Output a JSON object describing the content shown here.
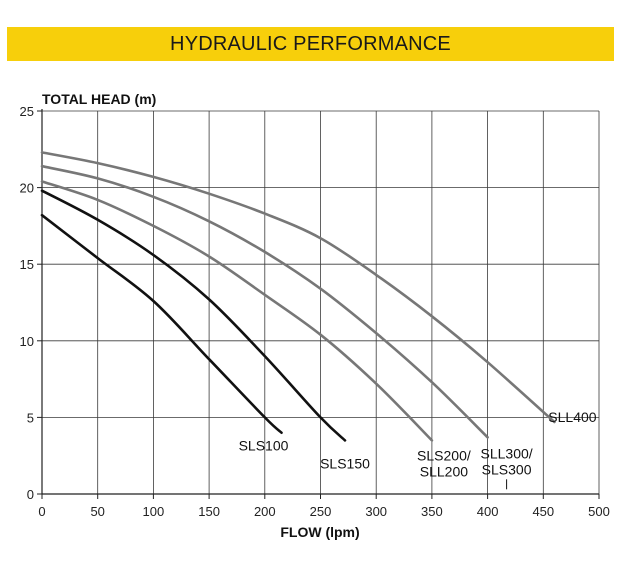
{
  "chart_data": {
    "type": "line",
    "title": "HYDRAULIC PERFORMANCE",
    "xlabel": "FLOW (lpm)",
    "ylabel": "TOTAL HEAD (m)",
    "xlim": [
      0,
      500
    ],
    "ylim": [
      0,
      25
    ],
    "xticks": [
      0,
      50,
      100,
      150,
      200,
      250,
      300,
      350,
      400,
      450,
      500
    ],
    "yticks": [
      0,
      5,
      10,
      15,
      20,
      25
    ],
    "grid": true,
    "series": [
      {
        "name": "SLS100",
        "label_lines": [
          "SLS100"
        ],
        "color": "#111111",
        "x": [
          0,
          50,
          100,
          150,
          200,
          215
        ],
        "y": [
          18.2,
          15.4,
          12.6,
          8.8,
          5.0,
          4.0
        ]
      },
      {
        "name": "SLS150",
        "label_lines": [
          "SLS150"
        ],
        "color": "#111111",
        "x": [
          0,
          50,
          100,
          150,
          200,
          250,
          272
        ],
        "y": [
          19.8,
          17.9,
          15.6,
          12.7,
          9.0,
          5.0,
          3.5
        ]
      },
      {
        "name": "SLS200/SLL200",
        "label_lines": [
          "SLS200/",
          "SLL200"
        ],
        "color": "#777777",
        "x": [
          0,
          50,
          100,
          150,
          200,
          250,
          300,
          350
        ],
        "y": [
          20.4,
          19.2,
          17.5,
          15.5,
          13.0,
          10.4,
          7.2,
          3.5
        ]
      },
      {
        "name": "SLL300/SLS300",
        "label_lines": [
          "SLL300/",
          "SLS300"
        ],
        "color": "#777777",
        "x": [
          0,
          50,
          100,
          150,
          200,
          250,
          300,
          350,
          400
        ],
        "y": [
          21.4,
          20.6,
          19.4,
          17.8,
          15.8,
          13.4,
          10.5,
          7.3,
          3.7
        ]
      },
      {
        "name": "SLL400",
        "label_lines": [
          "SLL400"
        ],
        "color": "#777777",
        "x": [
          0,
          50,
          100,
          150,
          200,
          250,
          300,
          350,
          400,
          460
        ],
        "y": [
          22.3,
          21.6,
          20.7,
          19.6,
          18.3,
          16.7,
          14.3,
          11.6,
          8.6,
          4.7
        ]
      }
    ]
  }
}
